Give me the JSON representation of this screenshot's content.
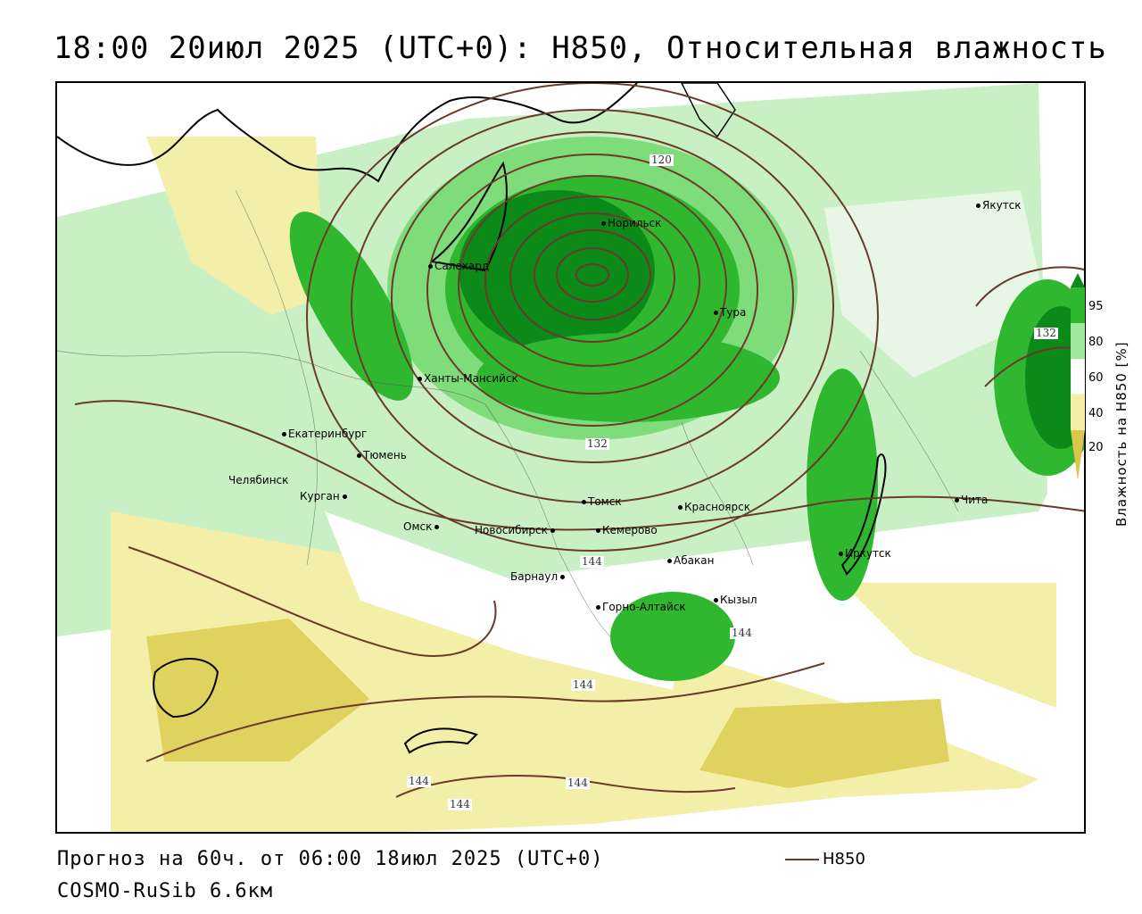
{
  "title": "18:00 20июл 2025 (UTC+0): H850, Относительная влажность",
  "footer": {
    "forecast": "Прогноз на 60ч. от 06:00 18июл 2025 (UTC+0)",
    "model": "COSMO-RuSib 6.6км"
  },
  "legend": {
    "line_label": "H850",
    "line_color": "#6b3a2a"
  },
  "colorbar": {
    "title": "Влажность на H850 [%]",
    "ticks": [
      "95",
      "80",
      "60",
      "40",
      "20"
    ],
    "colors": [
      "#0b8a1a",
      "#2fb82f",
      "#9de89a",
      "#ffffff",
      "#f3efa8",
      "#d9c64a"
    ]
  },
  "cities": [
    {
      "name": "Норильск"
    },
    {
      "name": "Салехард"
    },
    {
      "name": "Тура"
    },
    {
      "name": "Якутск"
    },
    {
      "name": "Ханты-Мансийск"
    },
    {
      "name": "Екатеринбург"
    },
    {
      "name": "Тюмень"
    },
    {
      "name": "Челябинск"
    },
    {
      "name": "Курган"
    },
    {
      "name": "Омск"
    },
    {
      "name": "Новосибирск"
    },
    {
      "name": "Томск"
    },
    {
      "name": "Кемерово"
    },
    {
      "name": "Красноярск"
    },
    {
      "name": "Барнаул"
    },
    {
      "name": "Абакан"
    },
    {
      "name": "Кызыл"
    },
    {
      "name": "Горно-Алтайск"
    },
    {
      "name": "Иркутск"
    },
    {
      "name": "Чита"
    }
  ],
  "contour_labels": [
    {
      "text": "120"
    },
    {
      "text": "132"
    },
    {
      "text": "132"
    },
    {
      "text": "144"
    },
    {
      "text": "144"
    },
    {
      "text": "144"
    },
    {
      "text": "144"
    },
    {
      "text": "144"
    },
    {
      "text": "144"
    }
  ]
}
